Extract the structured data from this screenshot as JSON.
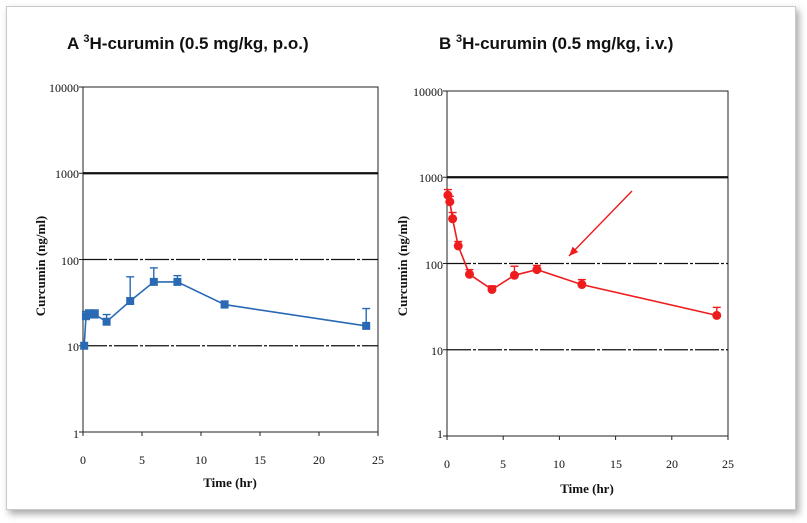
{
  "colors": {
    "panel_a": "#2a6ab5",
    "panel_b": "#ee1c1c",
    "arrow": "#ee1c1c"
  },
  "chart_data": [
    {
      "type": "line",
      "panel": "A",
      "title": "H-curumin (0.5 mg/kg, p.o.)",
      "title_sup": "3",
      "xlabel": "Time (hr)",
      "ylabel": "Curcumin (ng/ml)",
      "y_scale": "log",
      "xlim": [
        0,
        25
      ],
      "ylim": [
        1,
        10000
      ],
      "x_ticks": [
        "0",
        "5",
        "10",
        "15",
        "20",
        "25"
      ],
      "y_ticks": [
        "1",
        "10",
        "100",
        "1000",
        "10000"
      ],
      "grid": "horizontal at 10, 100, 1000",
      "series": [
        {
          "color": "#2a6ab5",
          "x": [
            0.1,
            0.25,
            0.5,
            1,
            2,
            4,
            6,
            8,
            12,
            24
          ],
          "y": [
            10,
            22,
            23,
            23,
            19,
            33,
            55,
            55,
            30,
            17
          ],
          "error_plus": [
            0,
            3,
            3,
            3,
            4,
            30,
            25,
            10,
            3,
            10
          ]
        }
      ]
    },
    {
      "type": "line",
      "panel": "B",
      "title": "H-curumin (0.5 mg/kg, i.v.)",
      "title_sup": "3",
      "xlabel": "Time (hr)",
      "ylabel": "Curcumin (ng/ml)",
      "y_scale": "log",
      "xlim": [
        0,
        25
      ],
      "ylim": [
        1,
        10000
      ],
      "x_ticks": [
        "0",
        "5",
        "10",
        "15",
        "20",
        "25"
      ],
      "y_ticks": [
        "1",
        "10",
        "100",
        "1000",
        "10000"
      ],
      "grid": "horizontal at 10, 100, 1000",
      "annotation": "arrow pointing down-left toward the curve near t = 10 hr",
      "series": [
        {
          "color": "#ee1c1c",
          "x": [
            0.08,
            0.25,
            0.5,
            1,
            2,
            4,
            6,
            8,
            12,
            24
          ],
          "y": [
            620,
            520,
            330,
            160,
            75,
            50,
            73,
            85,
            57,
            25
          ],
          "error_plus": [
            100,
            80,
            60,
            20,
            10,
            5,
            20,
            10,
            8,
            6
          ]
        }
      ]
    }
  ]
}
